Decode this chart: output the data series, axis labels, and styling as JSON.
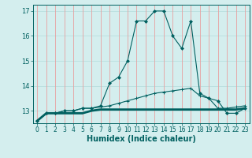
{
  "xlabel": "Humidex (Indice chaleur)",
  "x_values": [
    0,
    1,
    2,
    3,
    4,
    5,
    6,
    7,
    8,
    9,
    10,
    11,
    12,
    13,
    14,
    15,
    16,
    17,
    18,
    19,
    20,
    21,
    22,
    23
  ],
  "series1": [
    12.6,
    12.9,
    12.9,
    12.9,
    12.9,
    12.9,
    13.0,
    13.05,
    13.05,
    13.05,
    13.05,
    13.05,
    13.05,
    13.05,
    13.05,
    13.05,
    13.05,
    13.05,
    13.05,
    13.05,
    13.05,
    13.05,
    13.05,
    13.1
  ],
  "series2": [
    12.6,
    12.9,
    12.9,
    13.0,
    13.0,
    13.1,
    13.1,
    13.15,
    13.2,
    13.3,
    13.4,
    13.5,
    13.6,
    13.7,
    13.75,
    13.8,
    13.85,
    13.9,
    13.6,
    13.5,
    13.1,
    13.1,
    13.15,
    13.2
  ],
  "series3": [
    12.6,
    12.9,
    12.9,
    13.0,
    13.0,
    13.1,
    13.1,
    13.2,
    14.1,
    14.35,
    15.0,
    16.6,
    16.6,
    17.0,
    17.0,
    16.0,
    15.5,
    16.6,
    13.7,
    13.5,
    13.4,
    12.9,
    12.9,
    13.1
  ],
  "line_color": "#006060",
  "bg_color": "#d4eeee",
  "grid_color_v": "#e8a0a0",
  "grid_color_h": "#b8dede",
  "ylim": [
    12.5,
    17.25
  ],
  "yticks": [
    13,
    14,
    15,
    16,
    17
  ],
  "xlabel_fontsize": 7,
  "tick_fontsize": 5.5
}
